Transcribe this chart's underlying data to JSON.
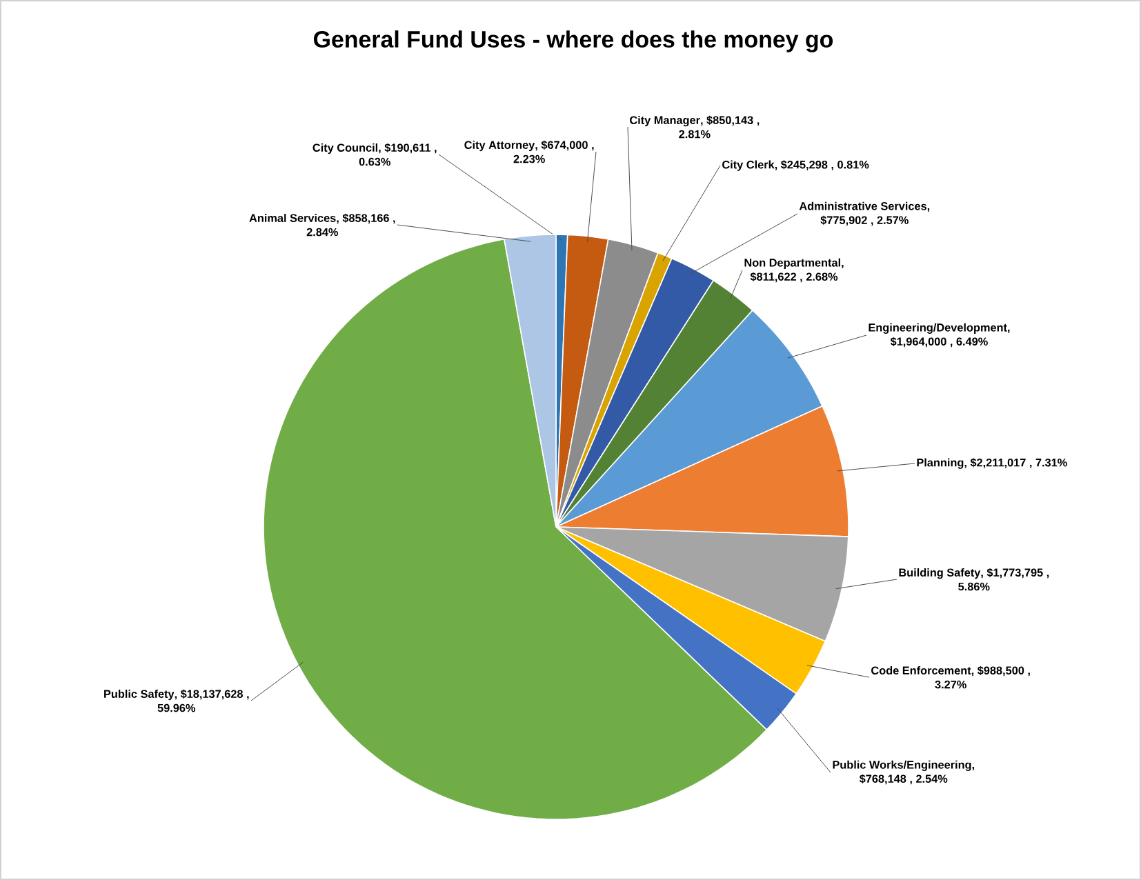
{
  "chart_data": {
    "type": "pie",
    "title": "General Fund Uses - where does the money go",
    "categories": [
      "City Council",
      "City Attorney",
      "City Manager",
      "City Clerk",
      "Administrative Services",
      "Non Departmental",
      "Engineering/Development",
      "Planning",
      "Building Safety",
      "Code Enforcement",
      "Public Works/Engineering",
      "Public Safety",
      "Animal Services"
    ],
    "values": [
      190611,
      674000,
      850143,
      245298,
      775902,
      811622,
      1964000,
      2211017,
      1773795,
      988500,
      768148,
      18137628,
      858166
    ],
    "value_labels": [
      ", $190,611 , 0.63%",
      ", $674,000 , 2.23%",
      ", $850,143 , 2.81%",
      ", $245,298 , 0.81%",
      ", $775,902 , 2.57%",
      ", $811,622 , 2.68%",
      ", $1,964,000 , 6.49%",
      ", $2,211,017 , 7.31%",
      ", $1,773,795 , 5.86%",
      ", $988,500 , 3.27%",
      ", $768,148 , 2.54%",
      ", $18,137,628 , 59.96%",
      ", $858,166 , 2.84%"
    ],
    "colors": [
      "#2e75b6",
      "#c55a11",
      "#8c8c8c",
      "#d9a300",
      "#335aa6",
      "#548235",
      "#5b9bd5",
      "#ed7d31",
      "#a5a5a5",
      "#ffc000",
      "#4472c4",
      "#70ad47",
      "#adc6e6"
    ]
  }
}
